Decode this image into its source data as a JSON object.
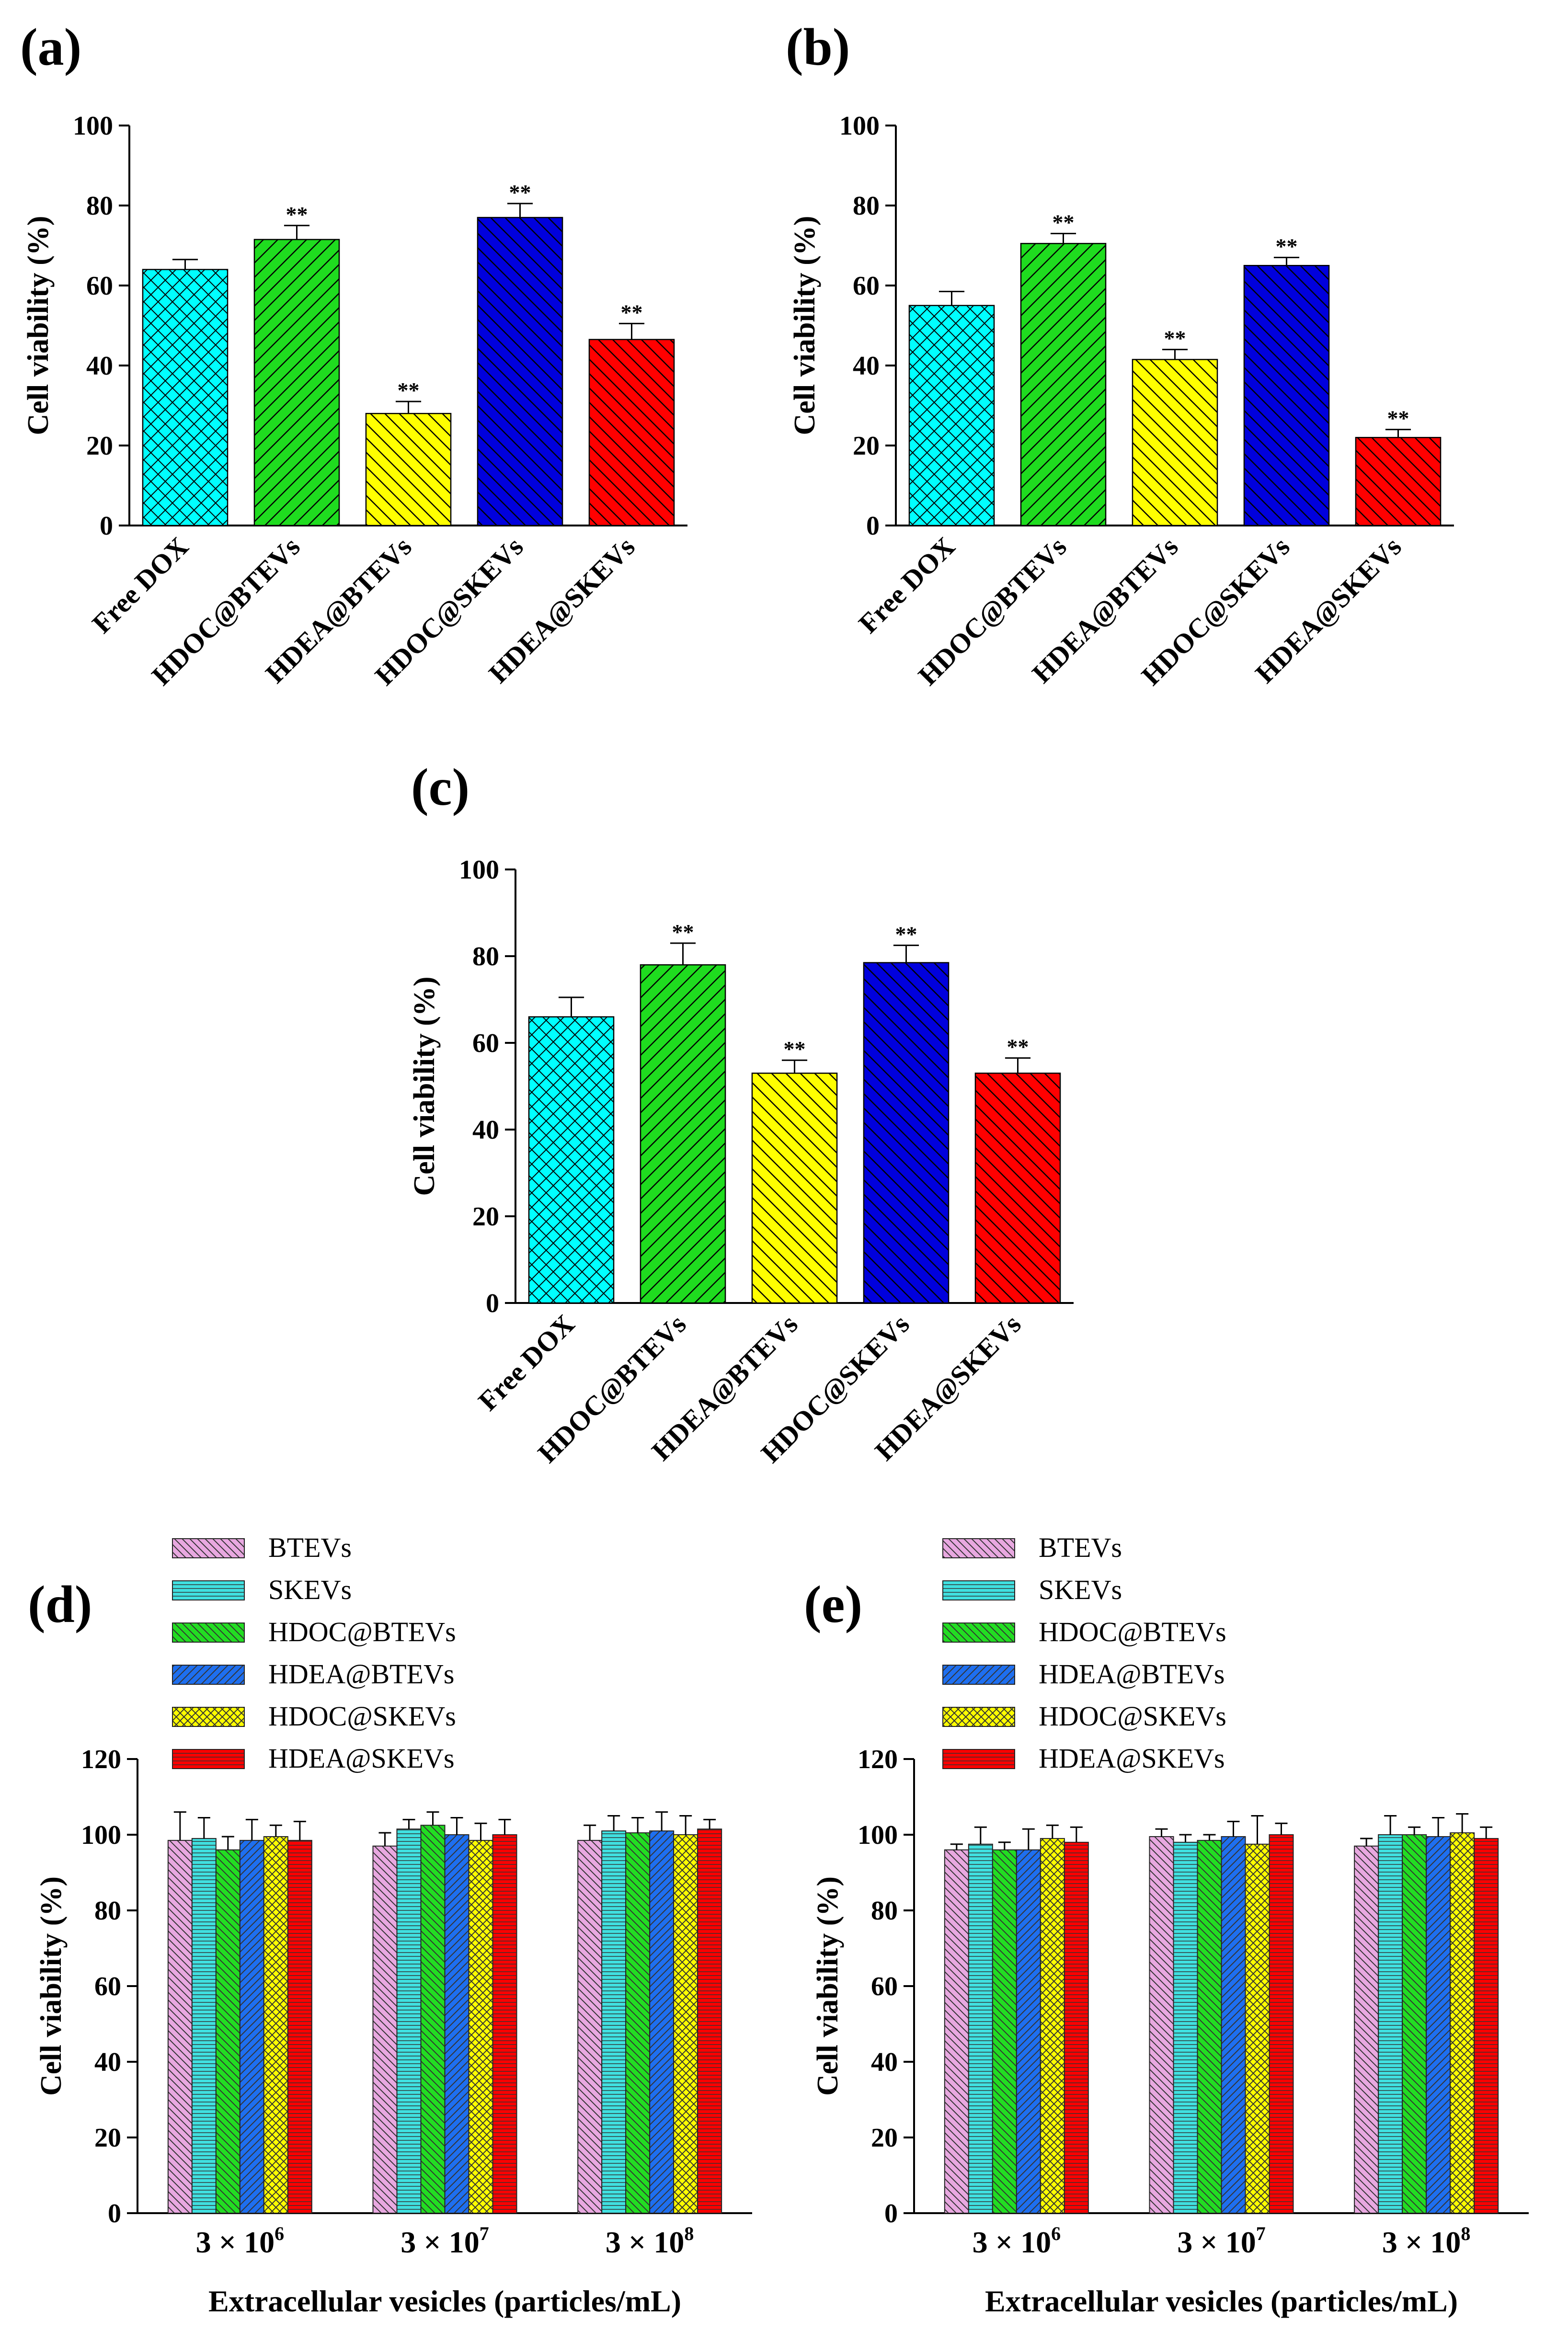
{
  "figure": {
    "colors": {
      "free_dox": "#00ffff",
      "hdoc_btevs": "#1fdc1f",
      "hdea_btevs": "#ffff00",
      "hdoc_skevs": "#0000dd",
      "hdea_skevs": "#ff0000",
      "btevs": "#e8a8e0",
      "skevs": "#40e0e0",
      "hdoc_btevs_d": "#22dd22",
      "hdea_btevs_d": "#1e6ff0",
      "hdoc_skevs_d": "#ffff00",
      "hdea_skevs_d": "#ff0000"
    }
  },
  "chart_data": [
    {
      "panel": "(a)",
      "type": "bar",
      "categories": [
        "Free DOX",
        "HDOC@BTEVs",
        "HDEA@BTEVs",
        "HDOC@SKEVs",
        "HDEA@SKEVs"
      ],
      "values": [
        64,
        71.5,
        28,
        77,
        46.5
      ],
      "errors": [
        2.5,
        3.5,
        3,
        3.5,
        4
      ],
      "significance": [
        "",
        "**",
        "**",
        "**",
        "**"
      ],
      "ylabel": "Cell viability (%)",
      "xlabel": "",
      "ylim": [
        0,
        100
      ],
      "yticks": [
        0,
        20,
        40,
        60,
        80,
        100
      ]
    },
    {
      "panel": "(b)",
      "type": "bar",
      "categories": [
        "Free DOX",
        "HDOC@BTEVs",
        "HDEA@BTEVs",
        "HDOC@SKEVs",
        "HDEA@SKEVs"
      ],
      "values": [
        55,
        70.5,
        41.5,
        65,
        22
      ],
      "errors": [
        3.5,
        2.5,
        2.5,
        2,
        2
      ],
      "significance": [
        "",
        "**",
        "**",
        "**",
        "**"
      ],
      "ylabel": "Cell viability (%)",
      "xlabel": "",
      "ylim": [
        0,
        100
      ],
      "yticks": [
        0,
        20,
        40,
        60,
        80,
        100
      ]
    },
    {
      "panel": "(c)",
      "type": "bar",
      "categories": [
        "Free DOX",
        "HDOC@BTEVs",
        "HDEA@BTEVs",
        "HDOC@SKEVs",
        "HDEA@SKEVs"
      ],
      "values": [
        66,
        78,
        53,
        78.5,
        53
      ],
      "errors": [
        4.5,
        5,
        3,
        4,
        3.5
      ],
      "significance": [
        "",
        "**",
        "**",
        "**",
        "**"
      ],
      "ylabel": "Cell viability (%)",
      "xlabel": "",
      "ylim": [
        0,
        100
      ],
      "yticks": [
        0,
        20,
        40,
        60,
        80,
        100
      ]
    },
    {
      "panel": "(d)",
      "type": "bar",
      "categories": [
        "3 × 10",
        "3 × 10",
        "3 × 10"
      ],
      "category_exponents": [
        "6",
        "7",
        "8"
      ],
      "series": [
        {
          "name": "BTEVs",
          "values": [
            98.5,
            97,
            98.5
          ],
          "errors": [
            7.5,
            3.5,
            4
          ]
        },
        {
          "name": "SKEVs",
          "values": [
            99,
            101.5,
            101
          ],
          "errors": [
            5.5,
            2.5,
            4
          ]
        },
        {
          "name": "HDOC@BTEVs",
          "values": [
            96,
            102.5,
            100.5
          ],
          "errors": [
            3.5,
            3.5,
            4
          ]
        },
        {
          "name": "HDEA@BTEVs",
          "values": [
            98.5,
            100,
            101
          ],
          "errors": [
            5.5,
            4.5,
            5
          ]
        },
        {
          "name": "HDOC@SKEVs",
          "values": [
            99.5,
            98.5,
            100
          ],
          "errors": [
            3,
            4.5,
            5
          ]
        },
        {
          "name": "HDEA@SKEVs",
          "values": [
            98.5,
            100,
            101.5
          ],
          "errors": [
            5,
            4,
            2.5
          ]
        }
      ],
      "ylabel": "Cell viability (%)",
      "xlabel": "Extracellular vesicles (particles/mL)",
      "ylim": [
        0,
        120
      ],
      "yticks": [
        0,
        20,
        40,
        60,
        80,
        100,
        120
      ],
      "legend": "top-left"
    },
    {
      "panel": "(e)",
      "type": "bar",
      "categories": [
        "3 × 10",
        "3 × 10",
        "3 × 10"
      ],
      "category_exponents": [
        "6",
        "7",
        "8"
      ],
      "series": [
        {
          "name": "BTEVs",
          "values": [
            96,
            99.5,
            97
          ],
          "errors": [
            1.5,
            2,
            2
          ]
        },
        {
          "name": "SKEVs",
          "values": [
            97.5,
            98,
            100
          ],
          "errors": [
            4.5,
            2,
            5
          ]
        },
        {
          "name": "HDOC@BTEVs",
          "values": [
            96,
            98.5,
            100
          ],
          "errors": [
            2,
            1.5,
            2
          ]
        },
        {
          "name": "HDEA@BTEVs",
          "values": [
            96,
            99.5,
            99.5
          ],
          "errors": [
            5.5,
            4,
            5
          ]
        },
        {
          "name": "HDOC@SKEVs",
          "values": [
            99,
            97.5,
            100.5
          ],
          "errors": [
            3.5,
            7.5,
            5
          ]
        },
        {
          "name": "HDEA@SKEVs",
          "values": [
            98,
            100,
            99
          ],
          "errors": [
            4,
            3,
            3
          ]
        }
      ],
      "ylabel": "Cell viability (%)",
      "xlabel": "Extracellular vesicles (particles/mL)",
      "ylim": [
        0,
        120
      ],
      "yticks": [
        0,
        20,
        40,
        60,
        80,
        100,
        120
      ],
      "legend": "top-left"
    }
  ]
}
